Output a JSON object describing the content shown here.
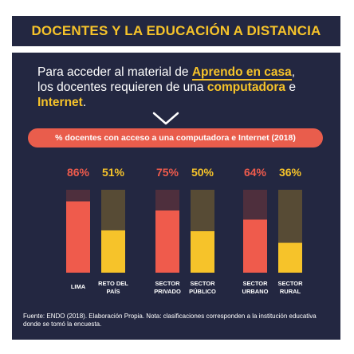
{
  "title": "DOCENTES Y LA EDUCACIÓN A DISTANCIA",
  "intro": {
    "part1": "Para acceder al material de ",
    "highlight1": "Aprendo en casa",
    "part2": ",",
    "part3": "los docentes requieren de una ",
    "highlight2": "computadora",
    "part4": " e",
    "highlight3": "Internet",
    "part5": "."
  },
  "chart_data": {
    "type": "bar",
    "title": "% docentes con acceso a una computadora e Internet (2018)",
    "categories": [
      [
        "LIMA"
      ],
      [
        "RETO DEL",
        "PAÍS"
      ],
      [
        "SECTOR",
        "PRIVADO"
      ],
      [
        "SECTOR",
        "PÚBLICO"
      ],
      [
        "SECTOR",
        "URBANO"
      ],
      [
        "SECTOR",
        "RURAL"
      ]
    ],
    "value_labels": [
      "86%",
      "51%",
      "75%",
      "50%",
      "64%",
      "36%"
    ],
    "values": [
      86,
      51,
      75,
      50,
      64,
      36
    ],
    "ylim": [
      0,
      100
    ],
    "colors": [
      "#ef5b4c",
      "#f6c32a",
      "#ef5b4c",
      "#f6c32a",
      "#ef5b4c",
      "#f6c32a"
    ],
    "track_colors": [
      "#4e2f3d",
      "#574b35",
      "#4e2f3d",
      "#574b35",
      "#4e2f3d",
      "#574b35"
    ],
    "label_colors": [
      "#ef5b4c",
      "#f6c32a",
      "#ef5b4c",
      "#f6c32a",
      "#ef5b4c",
      "#f6c32a"
    ]
  },
  "source": "Fuente: ENDO (2018). Elaboración Propia. Nota: clasificaciones corresponden a la institución educativa donde se tomó la encuesta.",
  "colors": {
    "background": "#232741",
    "accent_yellow": "#f6c32a",
    "accent_red": "#e95d4c"
  }
}
